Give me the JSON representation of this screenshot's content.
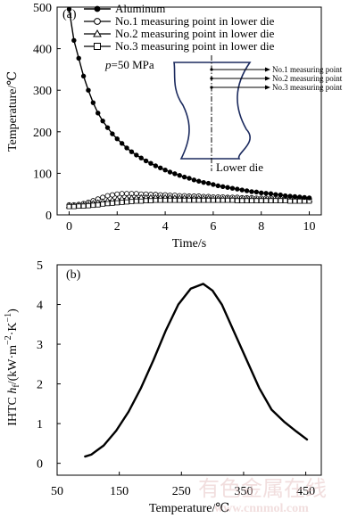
{
  "chart_data": [
    {
      "type": "line",
      "panel_label": "(a)",
      "xlabel": "Time/s",
      "ylabel": "Temperature/℃",
      "xlim": [
        -0.5,
        10.5
      ],
      "ylim": [
        0,
        500
      ],
      "xticks": [
        "0",
        "2",
        "4",
        "6",
        "8",
        "10"
      ],
      "yticks": [
        "0",
        "100",
        "200",
        "300",
        "400",
        "500"
      ],
      "annotation": "p=50 MPa",
      "legend_position": "top-left",
      "series": [
        {
          "name": "Aluminum",
          "marker": "filled-circle",
          "x": [
            0,
            0.2,
            0.4,
            0.6,
            0.8,
            1.0,
            1.2,
            1.4,
            1.6,
            1.8,
            2.0,
            2.2,
            2.4,
            2.6,
            2.8,
            3.0,
            3.2,
            3.4,
            3.6,
            3.8,
            4.0,
            4.2,
            4.4,
            4.6,
            4.8,
            5.0,
            5.2,
            5.4,
            5.6,
            5.8,
            6.0,
            6.2,
            6.4,
            6.6,
            6.8,
            7.0,
            7.2,
            7.4,
            7.6,
            7.8,
            8.0,
            8.2,
            8.4,
            8.6,
            8.8,
            9.0,
            9.2,
            9.4,
            9.6,
            9.8,
            10.0
          ],
          "y": [
            495,
            420,
            377,
            334,
            300,
            270,
            245,
            226,
            210,
            195,
            183,
            172,
            161,
            152,
            144,
            137,
            130,
            124,
            118,
            113,
            108,
            103,
            99,
            95,
            91,
            88,
            84,
            81,
            78,
            76,
            73,
            70,
            68,
            66,
            64,
            62,
            60,
            58,
            56,
            55,
            53,
            52,
            51,
            49,
            48,
            46,
            45,
            44,
            43,
            42,
            41
          ]
        },
        {
          "name": "No.1 measuring point in lower die",
          "marker": "open-circle",
          "x": [
            0,
            0.2,
            0.4,
            0.6,
            0.8,
            1.0,
            1.2,
            1.4,
            1.6,
            1.8,
            2.0,
            2.2,
            2.4,
            2.6,
            2.8,
            3.0,
            3.2,
            3.4,
            3.6,
            3.8,
            4.0,
            4.2,
            4.4,
            4.6,
            4.8,
            5.0,
            5.2,
            5.4,
            5.6,
            5.8,
            6.0,
            6.2,
            6.4,
            6.6,
            6.8,
            7.0,
            7.2,
            7.4,
            7.6,
            7.8,
            8.0,
            8.2,
            8.4,
            8.6,
            8.8,
            9.0,
            9.2,
            9.4,
            9.6,
            9.8,
            10.0
          ],
          "y": [
            24,
            24,
            25,
            27,
            30,
            34,
            38,
            42,
            46,
            48,
            50,
            51,
            51,
            51,
            51,
            50,
            50,
            49,
            49,
            48,
            48,
            47,
            47,
            46,
            46,
            45,
            45,
            45,
            44,
            44,
            43,
            43,
            43,
            42,
            42,
            42,
            41,
            41,
            41,
            40,
            40,
            40,
            40,
            40,
            39,
            39,
            39,
            39,
            39,
            38,
            38
          ]
        },
        {
          "name": "No.2 measuring point in lower die",
          "marker": "open-triangle",
          "x": [
            0,
            0.2,
            0.4,
            0.6,
            0.8,
            1.0,
            1.2,
            1.4,
            1.6,
            1.8,
            2.0,
            2.2,
            2.4,
            2.6,
            2.8,
            3.0,
            3.2,
            3.4,
            3.6,
            3.8,
            4.0,
            4.2,
            4.4,
            4.6,
            4.8,
            5.0,
            5.2,
            5.4,
            5.6,
            5.8,
            6.0,
            6.2,
            6.4,
            6.6,
            6.8,
            7.0,
            7.2,
            7.4,
            7.6,
            7.8,
            8.0,
            8.2,
            8.4,
            8.6,
            8.8,
            9.0,
            9.2,
            9.4,
            9.6,
            9.8,
            10.0
          ],
          "y": [
            22,
            22,
            23,
            24,
            26,
            28,
            30,
            32,
            34,
            36,
            38,
            39,
            40,
            41,
            41,
            42,
            42,
            42,
            42,
            42,
            42,
            42,
            41,
            41,
            41,
            41,
            40,
            40,
            40,
            40,
            39,
            39,
            39,
            39,
            38,
            38,
            38,
            38,
            38,
            37,
            37,
            37,
            37,
            37,
            37,
            36,
            36,
            36,
            36,
            36,
            36
          ]
        },
        {
          "name": "No.3 measuring point in lower die",
          "marker": "open-square",
          "x": [
            0,
            0.2,
            0.4,
            0.6,
            0.8,
            1.0,
            1.2,
            1.4,
            1.6,
            1.8,
            2.0,
            2.2,
            2.4,
            2.6,
            2.8,
            3.0,
            3.2,
            3.4,
            3.6,
            3.8,
            4.0,
            4.2,
            4.4,
            4.6,
            4.8,
            5.0,
            5.2,
            5.4,
            5.6,
            5.8,
            6.0,
            6.2,
            6.4,
            6.6,
            6.8,
            7.0,
            7.2,
            7.4,
            7.6,
            7.8,
            8.0,
            8.2,
            8.4,
            8.6,
            8.8,
            9.0,
            9.2,
            9.4,
            9.6,
            9.8,
            10.0
          ],
          "y": [
            20,
            20,
            21,
            21,
            22,
            23,
            24,
            26,
            27,
            28,
            29,
            30,
            31,
            32,
            33,
            33,
            34,
            34,
            35,
            35,
            35,
            35,
            35,
            35,
            35,
            35,
            35,
            35,
            35,
            35,
            35,
            35,
            35,
            35,
            35,
            34,
            34,
            34,
            34,
            34,
            34,
            34,
            34,
            34,
            34,
            34,
            33,
            33,
            33,
            33,
            33
          ]
        }
      ],
      "inset": {
        "label": "Lower die",
        "points": [
          "No.1 measuring point",
          "No.2 measuring point",
          "No.3 measuring point"
        ]
      }
    },
    {
      "type": "line",
      "panel_label": "(b)",
      "xlabel": "Temperature/℃",
      "ylabel": "IHTC h_f/(kW·m^-2·K^-1)",
      "xlim": [
        50,
        475
      ],
      "ylim": [
        -0.3,
        5
      ],
      "xticks": [
        "50",
        "150",
        "250",
        "350",
        "450"
      ],
      "yticks": [
        "0",
        "1",
        "2",
        "3",
        "4",
        "5"
      ],
      "series": [
        {
          "name": "",
          "x": [
            95,
            105,
            125,
            145,
            165,
            185,
            205,
            225,
            245,
            265,
            285,
            300,
            315,
            335,
            355,
            375,
            395,
            415,
            435,
            452
          ],
          "y": [
            0.17,
            0.22,
            0.45,
            0.82,
            1.3,
            1.9,
            2.6,
            3.35,
            4.0,
            4.4,
            4.52,
            4.35,
            4.0,
            3.3,
            2.6,
            1.9,
            1.35,
            1.05,
            0.8,
            0.6
          ]
        }
      ]
    }
  ],
  "ylabel_b_parts": {
    "prefix": "IHTC ",
    "h": "h",
    "sub": "f",
    "unit_open": "/(kW·m",
    "sup1": "−2",
    "unit_mid": "·K",
    "sup2": "−1",
    "unit_close": ")"
  },
  "annotation_a_parts": {
    "p": "p",
    "rest": "=50 MPa"
  },
  "watermark": {
    "text": "有色金属在线",
    "url": "www.cnnmol.com"
  }
}
